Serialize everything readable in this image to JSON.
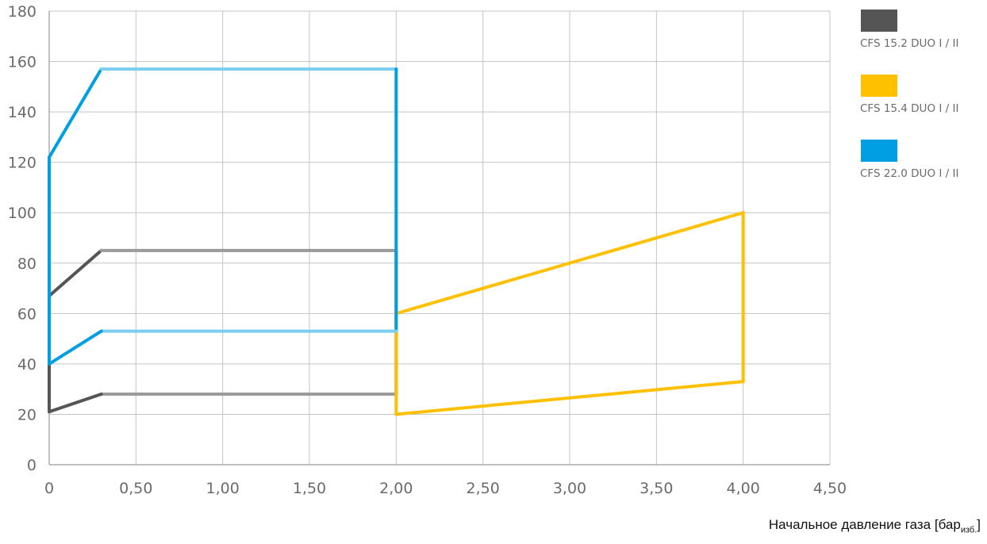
{
  "chart_data": {
    "type": "line",
    "xlabel_main": "Начальное давление газа [бар",
    "xlabel_sub": "изб.",
    "xlabel_end": "]",
    "xlim": [
      0,
      4.5
    ],
    "ylim": [
      0,
      180
    ],
    "x_ticks": [
      {
        "value": 0,
        "label": "0"
      },
      {
        "value": 0.5,
        "label": "0,50"
      },
      {
        "value": 1.0,
        "label": "1,00"
      },
      {
        "value": 1.5,
        "label": "1,50"
      },
      {
        "value": 2.0,
        "label": "2,00"
      },
      {
        "value": 2.5,
        "label": "2,50"
      },
      {
        "value": 3.0,
        "label": "3,00"
      },
      {
        "value": 3.5,
        "label": "3,50"
      },
      {
        "value": 4.0,
        "label": "4,00"
      },
      {
        "value": 4.5,
        "label": "4,50"
      }
    ],
    "y_ticks": [
      {
        "value": 0,
        "label": "0"
      },
      {
        "value": 20,
        "label": "20"
      },
      {
        "value": 40,
        "label": "40"
      },
      {
        "value": 60,
        "label": "60"
      },
      {
        "value": 80,
        "label": "80"
      },
      {
        "value": 100,
        "label": "100"
      },
      {
        "value": 120,
        "label": "120"
      },
      {
        "value": 140,
        "label": "140"
      },
      {
        "value": 160,
        "label": "160"
      },
      {
        "value": 180,
        "label": "180"
      }
    ],
    "grid": true,
    "legend_position": "right",
    "series": [
      {
        "name": "CFS 15.2 DUO I / II",
        "color": "#555555",
        "light_color": "#9a9a9a",
        "points": [
          [
            0,
            67
          ],
          [
            0.3,
            85
          ],
          [
            2.0,
            85
          ],
          [
            2.0,
            28
          ],
          [
            0.3,
            28
          ],
          [
            0,
            21
          ],
          [
            0,
            67
          ]
        ]
      },
      {
        "name": "CFS 15.4 DUO I / II",
        "color": "#ffc000",
        "light_color": "#ffc000",
        "points": [
          [
            2.0,
            60
          ],
          [
            4.0,
            100
          ],
          [
            4.0,
            33
          ],
          [
            2.0,
            20
          ],
          [
            2.0,
            60
          ]
        ]
      },
      {
        "name": "CFS 22.0 DUO I / II",
        "color": "#009fe3",
        "light_color": "#7dcdf1",
        "points": [
          [
            0,
            122
          ],
          [
            0.3,
            157
          ],
          [
            2.0,
            157
          ],
          [
            2.0,
            53
          ],
          [
            0.3,
            53
          ],
          [
            0,
            40
          ],
          [
            0,
            122
          ]
        ]
      }
    ]
  }
}
